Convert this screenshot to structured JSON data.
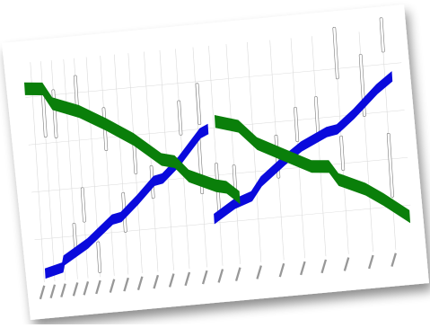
{
  "diagram": {
    "type": "train-timetable-graph",
    "colors": {
      "background": "#ffffff",
      "paper": "#ffffff",
      "gridline": "#d9d9d9",
      "blue_band": "#0a0adc",
      "green_band": "#0a7f0a",
      "dwell_box": "#ffffff",
      "dwell_stroke": "#777777",
      "station_label": "#444444"
    },
    "stations": [
      "",
      "",
      "",
      "",
      "",
      "",
      "",
      "",
      "",
      "",
      "",
      "",
      "",
      "",
      "",
      "",
      "",
      "",
      "",
      "",
      "",
      ""
    ],
    "trains": [
      {
        "color_key": "blue_band",
        "direction": "up"
      },
      {
        "color_key": "blue_band",
        "direction": "up"
      },
      {
        "color_key": "green_band",
        "direction": "down"
      },
      {
        "color_key": "green_band",
        "direction": "down"
      }
    ]
  }
}
